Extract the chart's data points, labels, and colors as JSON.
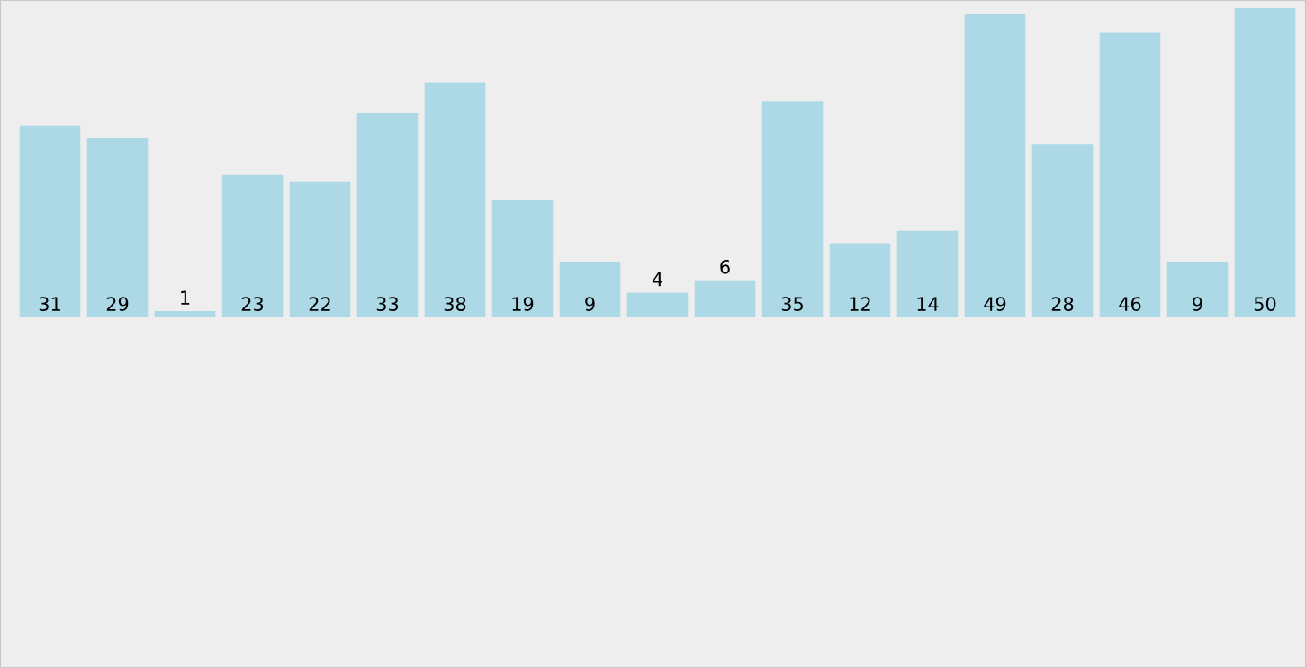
{
  "chart_data": {
    "type": "bar",
    "categories": [
      null,
      null,
      null,
      null,
      null,
      null,
      null,
      null,
      null,
      null,
      null,
      null,
      null,
      null,
      null,
      null,
      null,
      null,
      null
    ],
    "values": [
      31,
      29,
      1,
      23,
      22,
      33,
      38,
      19,
      9,
      4,
      6,
      35,
      12,
      14,
      49,
      28,
      46,
      9,
      50
    ],
    "color": "#add8e6",
    "data_labels": true,
    "tick_labels": false,
    "grid": false,
    "legend": false
  }
}
